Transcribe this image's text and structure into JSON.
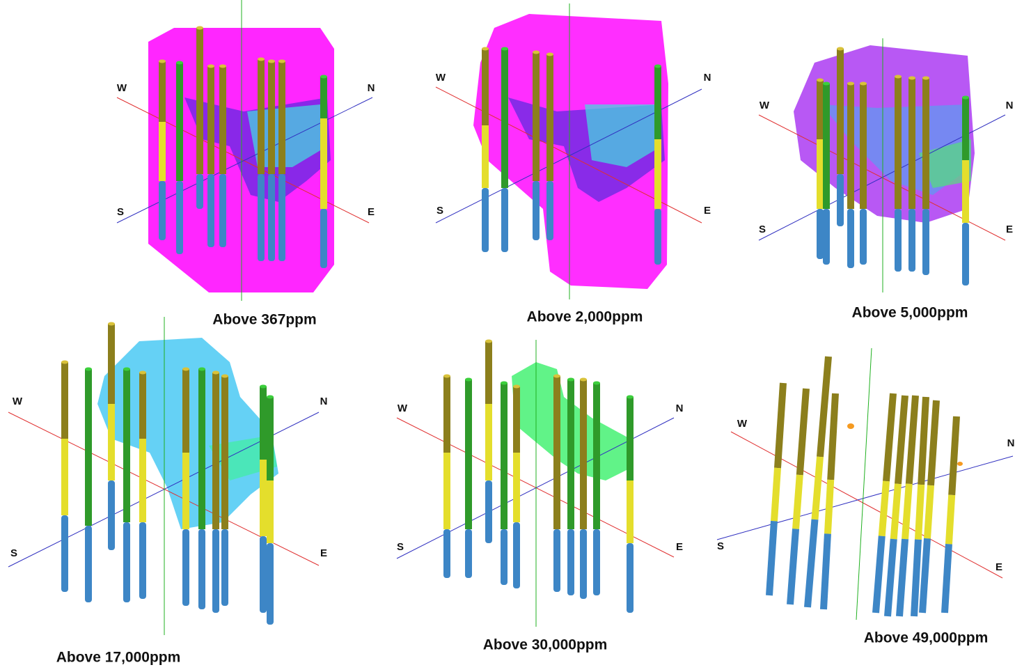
{
  "panels": [
    {
      "caption": "Above 367ppm",
      "compass": [
        "W",
        "N",
        "S",
        "E"
      ]
    },
    {
      "caption": "Above 2,000ppm",
      "compass": [
        "W",
        "N",
        "S",
        "E"
      ]
    },
    {
      "caption": "Above 5,000ppm",
      "compass": [
        "W",
        "N",
        "S",
        "E"
      ]
    },
    {
      "caption": "Above 17,000ppm",
      "compass": [
        "W",
        "N",
        "S",
        "E"
      ]
    },
    {
      "caption": "Above 30,000ppm",
      "compass": [
        "W",
        "N",
        "S",
        "E"
      ]
    },
    {
      "caption": "Above 49,000ppm",
      "compass": [
        "W",
        "N",
        "S",
        "E"
      ]
    }
  ]
}
